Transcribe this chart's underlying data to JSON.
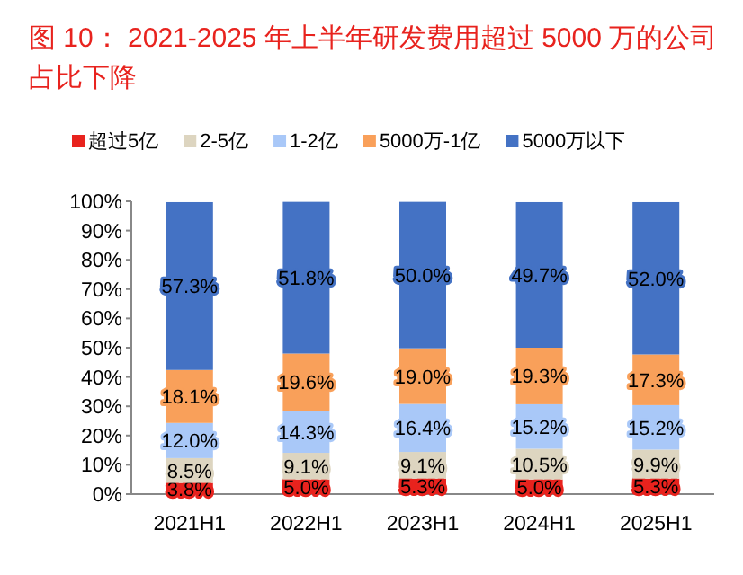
{
  "chart_data": {
    "type": "bar",
    "stacked": true,
    "title": "图 10： 2021-2025 年上半年研发费用超过 5000 万的公司占比下降",
    "categories": [
      "2021H1",
      "2022H1",
      "2023H1",
      "2024H1",
      "2025H1"
    ],
    "series": [
      {
        "name": "超过5亿",
        "color": "#e8231e",
        "values": [
          3.8,
          5.0,
          5.3,
          5.0,
          5.3
        ],
        "value_labels": [
          "3.8%",
          "5.0%",
          "5.3%",
          "5.0%",
          "5.3%"
        ]
      },
      {
        "name": "2-5亿",
        "color": "#ddd5c0",
        "values": [
          8.5,
          9.1,
          9.1,
          10.5,
          9.9
        ],
        "value_labels": [
          "8.5%",
          "9.1%",
          "9.1%",
          "10.5%",
          "9.9%"
        ]
      },
      {
        "name": "1-2亿",
        "color": "#a9c8f8",
        "values": [
          12.0,
          14.3,
          16.4,
          15.2,
          15.2
        ],
        "value_labels": [
          "12.0%",
          "14.3%",
          "16.4%",
          "15.2%",
          "15.2%"
        ]
      },
      {
        "name": "5000万-1亿",
        "color": "#f9a05a",
        "values": [
          18.1,
          19.6,
          19.0,
          19.3,
          17.3
        ],
        "value_labels": [
          "18.1%",
          "19.6%",
          "19.0%",
          "19.3%",
          "17.3%"
        ]
      },
      {
        "name": "5000万以下",
        "color": "#4472c4",
        "values": [
          57.3,
          51.8,
          50.0,
          49.7,
          52.0
        ],
        "value_labels": [
          "57.3%",
          "51.8%",
          "50.0%",
          "49.7%",
          "52.0%"
        ]
      }
    ],
    "ylim": [
      0,
      100
    ],
    "yticks": [
      {
        "value": 0,
        "label": "0%"
      },
      {
        "value": 10,
        "label": "10%"
      },
      {
        "value": 20,
        "label": "20%"
      },
      {
        "value": 30,
        "label": "30%"
      },
      {
        "value": 40,
        "label": "40%"
      },
      {
        "value": 50,
        "label": "50%"
      },
      {
        "value": 60,
        "label": "60%"
      },
      {
        "value": 70,
        "label": "70%"
      },
      {
        "value": 80,
        "label": "80%"
      },
      {
        "value": 90,
        "label": "90%"
      },
      {
        "value": 100,
        "label": "100%"
      }
    ],
    "legend": "top",
    "grid": false
  }
}
